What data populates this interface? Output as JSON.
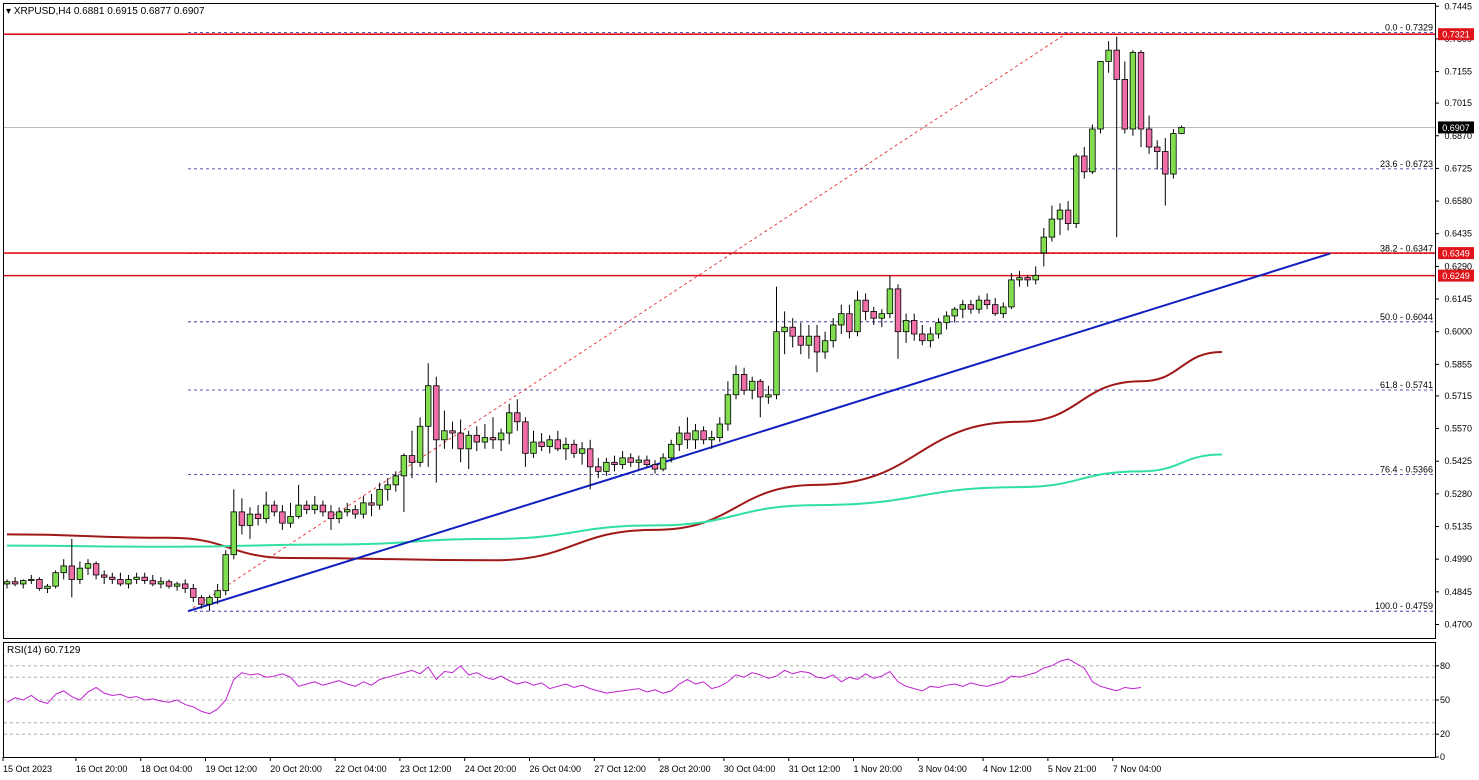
{
  "header": {
    "symbol": "XRPUSD,H4",
    "ohlc": "0.6881 0.6915 0.6877 0.6907"
  },
  "rsi_header": "RSI(14) 60.7129",
  "colors": {
    "bull_candle": "#7fdd4f",
    "bear_candle": "#f06ea8",
    "horizontal_level": "#e0141b",
    "trendline": "#1020c0",
    "ma_slow": "#a01818",
    "ma_fast": "#30e0a0",
    "fib_line": "#2020a0",
    "rsi_line": "#c020d0"
  },
  "price_axis": {
    "min": 0.464,
    "max": 0.7455,
    "ticks": [
      "0.7445",
      "0.7300",
      "0.7155",
      "0.7015",
      "0.6870",
      "0.6725",
      "0.6580",
      "0.6435",
      "0.6290",
      "0.6145",
      "0.6000",
      "0.5855",
      "0.5715",
      "0.5570",
      "0.5425",
      "0.5280",
      "0.5135",
      "0.4990",
      "0.4845",
      "0.4700"
    ]
  },
  "badges": [
    {
      "text": "0.7321",
      "value": 0.7321,
      "bg": "#e0141b"
    },
    {
      "text": "0.6907",
      "value": 0.6907,
      "bg": "#000000"
    },
    {
      "text": "0.6349",
      "value": 0.6349,
      "bg": "#e0141b"
    },
    {
      "text": "0.6249",
      "value": 0.6249,
      "bg": "#e0141b"
    }
  ],
  "time_axis": [
    {
      "text": "15 Oct 2023",
      "index": 0
    },
    {
      "text": "16 Oct 20:00",
      "index": 9
    },
    {
      "text": "18 Oct 04:00",
      "index": 17
    },
    {
      "text": "19 Oct 12:00",
      "index": 25
    },
    {
      "text": "20 Oct 20:00",
      "index": 33
    },
    {
      "text": "22 Oct 04:00",
      "index": 41
    },
    {
      "text": "23 Oct 12:00",
      "index": 49
    },
    {
      "text": "24 Oct 20:00",
      "index": 57
    },
    {
      "text": "26 Oct 04:00",
      "index": 65
    },
    {
      "text": "27 Oct 12:00",
      "index": 73
    },
    {
      "text": "28 Oct 20:00",
      "index": 81
    },
    {
      "text": "30 Oct 04:00",
      "index": 89
    },
    {
      "text": "31 Oct 12:00",
      "index": 97
    },
    {
      "text": "1 Nov 20:00",
      "index": 105
    },
    {
      "text": "3 Nov 04:00",
      "index": 113
    },
    {
      "text": "4 Nov 12:00",
      "index": 121
    },
    {
      "text": "5 Nov 21:00",
      "index": 129
    },
    {
      "text": "7 Nov 04:00",
      "index": 137
    }
  ],
  "horizontal_levels": [
    {
      "name": "resistance-0.7321",
      "value": 0.7321
    },
    {
      "name": "resistance-0.6349",
      "value": 0.6349
    },
    {
      "name": "support-0.6249",
      "value": 0.6249
    }
  ],
  "fib_levels": [
    {
      "label": "0.0 - 0.7329",
      "value": 0.7329
    },
    {
      "label": "23.6 - 0.6723",
      "value": 0.6723
    },
    {
      "label": "38.2 - 0.6347",
      "value": 0.6347
    },
    {
      "label": "50.0 - 0.6044",
      "value": 0.6044
    },
    {
      "label": "61.8 - 0.5741",
      "value": 0.5741
    },
    {
      "label": "76.4 - 0.5366",
      "value": 0.5366
    },
    {
      "label": "100.0 - 0.4759",
      "value": 0.4759
    }
  ],
  "rsi_axis": {
    "min": 0,
    "max": 100,
    "ticks": [
      "80",
      "50",
      "20",
      "0"
    ],
    "tick_values": [
      80,
      50,
      20,
      0
    ],
    "levels": [
      80,
      70,
      50,
      30,
      20
    ]
  },
  "chart_data": {
    "type": "line",
    "title": "XRPUSD,H4",
    "ylim": [
      0.464,
      0.7455
    ],
    "candles": [
      [
        0.488,
        0.49,
        0.486,
        0.489
      ],
      [
        0.489,
        0.491,
        0.487,
        0.488
      ],
      [
        0.488,
        0.49,
        0.486,
        0.4895
      ],
      [
        0.4895,
        0.492,
        0.488,
        0.49
      ],
      [
        0.49,
        0.491,
        0.485,
        0.486
      ],
      [
        0.486,
        0.488,
        0.484,
        0.487
      ],
      [
        0.487,
        0.494,
        0.486,
        0.493
      ],
      [
        0.493,
        0.499,
        0.49,
        0.496
      ],
      [
        0.496,
        0.508,
        0.482,
        0.49
      ],
      [
        0.49,
        0.498,
        0.488,
        0.495
      ],
      [
        0.495,
        0.499,
        0.492,
        0.497
      ],
      [
        0.497,
        0.498,
        0.49,
        0.492
      ],
      [
        0.492,
        0.494,
        0.488,
        0.491
      ],
      [
        0.491,
        0.493,
        0.488,
        0.49
      ],
      [
        0.49,
        0.493,
        0.487,
        0.488
      ],
      [
        0.488,
        0.492,
        0.486,
        0.49
      ],
      [
        0.49,
        0.493,
        0.488,
        0.491
      ],
      [
        0.491,
        0.493,
        0.488,
        0.4895
      ],
      [
        0.4895,
        0.492,
        0.487,
        0.488
      ],
      [
        0.488,
        0.491,
        0.486,
        0.489
      ],
      [
        0.489,
        0.49,
        0.486,
        0.487
      ],
      [
        0.487,
        0.489,
        0.485,
        0.488
      ],
      [
        0.488,
        0.49,
        0.484,
        0.486
      ],
      [
        0.486,
        0.488,
        0.48,
        0.482
      ],
      [
        0.482,
        0.483,
        0.477,
        0.479
      ],
      [
        0.479,
        0.483,
        0.476,
        0.482
      ],
      [
        0.482,
        0.488,
        0.479,
        0.485
      ],
      [
        0.485,
        0.503,
        0.483,
        0.501
      ],
      [
        0.501,
        0.53,
        0.499,
        0.52
      ],
      [
        0.52,
        0.526,
        0.51,
        0.514
      ],
      [
        0.514,
        0.522,
        0.508,
        0.519
      ],
      [
        0.519,
        0.523,
        0.514,
        0.517
      ],
      [
        0.517,
        0.529,
        0.515,
        0.523
      ],
      [
        0.523,
        0.525,
        0.518,
        0.52
      ],
      [
        0.52,
        0.523,
        0.512,
        0.515
      ],
      [
        0.515,
        0.524,
        0.513,
        0.518
      ],
      [
        0.518,
        0.532,
        0.517,
        0.523
      ],
      [
        0.523,
        0.525,
        0.519,
        0.521
      ],
      [
        0.521,
        0.527,
        0.519,
        0.523
      ],
      [
        0.523,
        0.525,
        0.518,
        0.52
      ],
      [
        0.52,
        0.523,
        0.512,
        0.517
      ],
      [
        0.517,
        0.522,
        0.515,
        0.52
      ],
      [
        0.52,
        0.524,
        0.518,
        0.521
      ],
      [
        0.521,
        0.523,
        0.517,
        0.519
      ],
      [
        0.519,
        0.527,
        0.517,
        0.524
      ],
      [
        0.524,
        0.528,
        0.518,
        0.523
      ],
      [
        0.523,
        0.533,
        0.521,
        0.53
      ],
      [
        0.53,
        0.535,
        0.525,
        0.532
      ],
      [
        0.532,
        0.538,
        0.529,
        0.536
      ],
      [
        0.536,
        0.546,
        0.52,
        0.545
      ],
      [
        0.545,
        0.556,
        0.535,
        0.542
      ],
      [
        0.542,
        0.562,
        0.54,
        0.558
      ],
      [
        0.558,
        0.586,
        0.54,
        0.576
      ],
      [
        0.576,
        0.58,
        0.533,
        0.552
      ],
      [
        0.552,
        0.565,
        0.548,
        0.556
      ],
      [
        0.556,
        0.56,
        0.548,
        0.555
      ],
      [
        0.555,
        0.561,
        0.542,
        0.548
      ],
      [
        0.548,
        0.556,
        0.539,
        0.554
      ],
      [
        0.554,
        0.558,
        0.547,
        0.551
      ],
      [
        0.551,
        0.559,
        0.548,
        0.553
      ],
      [
        0.553,
        0.562,
        0.548,
        0.552
      ],
      [
        0.552,
        0.557,
        0.547,
        0.555
      ],
      [
        0.555,
        0.568,
        0.55,
        0.564
      ],
      [
        0.564,
        0.57,
        0.556,
        0.56
      ],
      [
        0.56,
        0.562,
        0.54,
        0.546
      ],
      [
        0.546,
        0.556,
        0.544,
        0.551
      ],
      [
        0.551,
        0.555,
        0.547,
        0.549
      ],
      [
        0.549,
        0.554,
        0.546,
        0.552
      ],
      [
        0.552,
        0.556,
        0.547,
        0.548
      ],
      [
        0.548,
        0.553,
        0.543,
        0.55
      ],
      [
        0.55,
        0.552,
        0.544,
        0.546
      ],
      [
        0.546,
        0.551,
        0.541,
        0.548
      ],
      [
        0.548,
        0.552,
        0.53,
        0.54
      ],
      [
        0.54,
        0.544,
        0.535,
        0.538
      ],
      [
        0.538,
        0.544,
        0.536,
        0.542
      ],
      [
        0.542,
        0.545,
        0.538,
        0.541
      ],
      [
        0.541,
        0.547,
        0.539,
        0.544
      ],
      [
        0.544,
        0.546,
        0.54,
        0.542
      ],
      [
        0.542,
        0.545,
        0.539,
        0.543
      ],
      [
        0.543,
        0.545,
        0.54,
        0.541
      ],
      [
        0.541,
        0.543,
        0.537,
        0.539
      ],
      [
        0.539,
        0.546,
        0.538,
        0.544
      ],
      [
        0.544,
        0.552,
        0.542,
        0.55
      ],
      [
        0.55,
        0.558,
        0.547,
        0.555
      ],
      [
        0.555,
        0.562,
        0.548,
        0.552
      ],
      [
        0.552,
        0.559,
        0.548,
        0.556
      ],
      [
        0.556,
        0.558,
        0.55,
        0.552
      ],
      [
        0.552,
        0.556,
        0.548,
        0.553
      ],
      [
        0.553,
        0.562,
        0.551,
        0.559
      ],
      [
        0.559,
        0.578,
        0.556,
        0.572
      ],
      [
        0.572,
        0.585,
        0.57,
        0.581
      ],
      [
        0.581,
        0.584,
        0.572,
        0.574
      ],
      [
        0.574,
        0.58,
        0.57,
        0.578
      ],
      [
        0.578,
        0.579,
        0.562,
        0.571
      ],
      [
        0.571,
        0.576,
        0.568,
        0.572
      ],
      [
        0.572,
        0.62,
        0.57,
        0.6
      ],
      [
        0.6,
        0.609,
        0.59,
        0.602
      ],
      [
        0.602,
        0.606,
        0.593,
        0.598
      ],
      [
        0.598,
        0.604,
        0.59,
        0.594
      ],
      [
        0.594,
        0.603,
        0.588,
        0.598
      ],
      [
        0.598,
        0.603,
        0.582,
        0.591
      ],
      [
        0.591,
        0.6,
        0.588,
        0.596
      ],
      [
        0.596,
        0.606,
        0.593,
        0.603
      ],
      [
        0.603,
        0.612,
        0.599,
        0.608
      ],
      [
        0.608,
        0.612,
        0.597,
        0.6
      ],
      [
        0.6,
        0.618,
        0.598,
        0.614
      ],
      [
        0.614,
        0.617,
        0.605,
        0.609
      ],
      [
        0.609,
        0.611,
        0.603,
        0.606
      ],
      [
        0.606,
        0.61,
        0.602,
        0.608
      ],
      [
        0.608,
        0.625,
        0.606,
        0.619
      ],
      [
        0.619,
        0.621,
        0.588,
        0.6
      ],
      [
        0.6,
        0.608,
        0.595,
        0.605
      ],
      [
        0.605,
        0.608,
        0.596,
        0.599
      ],
      [
        0.599,
        0.603,
        0.594,
        0.596
      ],
      [
        0.596,
        0.602,
        0.593,
        0.599
      ],
      [
        0.599,
        0.606,
        0.597,
        0.604
      ],
      [
        0.604,
        0.609,
        0.601,
        0.607
      ],
      [
        0.607,
        0.611,
        0.604,
        0.61
      ],
      [
        0.61,
        0.614,
        0.606,
        0.612
      ],
      [
        0.612,
        0.614,
        0.608,
        0.61
      ],
      [
        0.61,
        0.616,
        0.608,
        0.614
      ],
      [
        0.614,
        0.617,
        0.61,
        0.612
      ],
      [
        0.612,
        0.615,
        0.607,
        0.608
      ],
      [
        0.608,
        0.613,
        0.606,
        0.611
      ],
      [
        0.611,
        0.626,
        0.61,
        0.623
      ],
      [
        0.623,
        0.627,
        0.62,
        0.624
      ],
      [
        0.624,
        0.625,
        0.62,
        0.623
      ],
      [
        0.623,
        0.629,
        0.621,
        0.625
      ],
      [
        0.635,
        0.646,
        0.629,
        0.642
      ],
      [
        0.642,
        0.656,
        0.64,
        0.65
      ],
      [
        0.65,
        0.657,
        0.643,
        0.654
      ],
      [
        0.654,
        0.658,
        0.645,
        0.648
      ],
      [
        0.648,
        0.679,
        0.646,
        0.678
      ],
      [
        0.678,
        0.682,
        0.668,
        0.671
      ],
      [
        0.671,
        0.692,
        0.67,
        0.69
      ],
      [
        0.69,
        0.72,
        0.688,
        0.72
      ],
      [
        0.72,
        0.729,
        0.715,
        0.725
      ],
      [
        0.725,
        0.731,
        0.642,
        0.712
      ],
      [
        0.712,
        0.72,
        0.688,
        0.69
      ],
      [
        0.69,
        0.725,
        0.687,
        0.724
      ],
      [
        0.724,
        0.725,
        0.682,
        0.69
      ],
      [
        0.69,
        0.696,
        0.679,
        0.682
      ],
      [
        0.682,
        0.685,
        0.672,
        0.68
      ],
      [
        0.68,
        0.686,
        0.656,
        0.67
      ],
      [
        0.67,
        0.69,
        0.668,
        0.688
      ],
      [
        0.688,
        0.6915,
        0.6877,
        0.6907
      ]
    ],
    "series": [
      {
        "name": "",
        "values_start": 0.51,
        "path": [
          [
            0,
            0.51
          ],
          [
            20,
            0.5085
          ],
          [
            35,
            0.4995
          ],
          [
            60,
            0.4985
          ],
          [
            80,
            0.512
          ],
          [
            100,
            0.532
          ],
          [
            125,
            0.56
          ],
          [
            140,
            0.578
          ],
          [
            150,
            0.591
          ]
        ]
      },
      {
        "name": "",
        "path": [
          [
            0,
            0.505
          ],
          [
            20,
            0.5045
          ],
          [
            40,
            0.5055
          ],
          [
            60,
            0.508
          ],
          [
            80,
            0.514
          ],
          [
            100,
            0.523
          ],
          [
            125,
            0.531
          ],
          [
            140,
            0.538
          ],
          [
            150,
            0.5455
          ]
        ]
      }
    ],
    "rsi": [
      48,
      52,
      50,
      54,
      49,
      47,
      55,
      58,
      53,
      50,
      57,
      61,
      56,
      54,
      55,
      52,
      53,
      50,
      51,
      49,
      48,
      50,
      46,
      44,
      40,
      38,
      42,
      50,
      68,
      74,
      72,
      73,
      70,
      71,
      73,
      70,
      62,
      64,
      66,
      63,
      65,
      67,
      64,
      62,
      66,
      63,
      68,
      70,
      72,
      74,
      76,
      73,
      79,
      68,
      75,
      74,
      80,
      72,
      74,
      70,
      68,
      71,
      67,
      64,
      66,
      63,
      65,
      60,
      62,
      64,
      61,
      63,
      60,
      58,
      56,
      57,
      58,
      59,
      60,
      57,
      59,
      56,
      58,
      64,
      68,
      64,
      66,
      60,
      62,
      66,
      72,
      70,
      74,
      72,
      69,
      71,
      76,
      73,
      75,
      74,
      70,
      69,
      72,
      66,
      70,
      68,
      73,
      69,
      71,
      75,
      66,
      62,
      60,
      58,
      62,
      61,
      63,
      64,
      62,
      65,
      63,
      62,
      64,
      66,
      71,
      70,
      72,
      74,
      78,
      80,
      84,
      86,
      82,
      78,
      66,
      62,
      60,
      58,
      61,
      60,
      61
    ]
  }
}
